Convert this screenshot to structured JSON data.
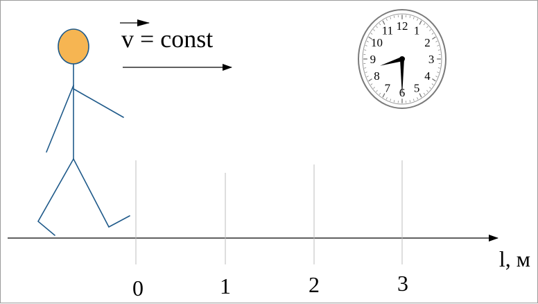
{
  "formula": {
    "text": "v = const"
  },
  "axis": {
    "unit_label": "l, м",
    "ticks": [
      "0",
      "1",
      "2",
      "3"
    ]
  },
  "clock": {
    "numbers": [
      "12",
      "1",
      "2",
      "3",
      "4",
      "5",
      "6",
      "7",
      "8",
      "9",
      "10",
      "11"
    ],
    "time_hours": 8,
    "time_minutes": 30
  },
  "colors": {
    "figure_stroke": "#1f5a8a",
    "head_fill": "#f6b552",
    "head_stroke": "#1f5a8a"
  }
}
